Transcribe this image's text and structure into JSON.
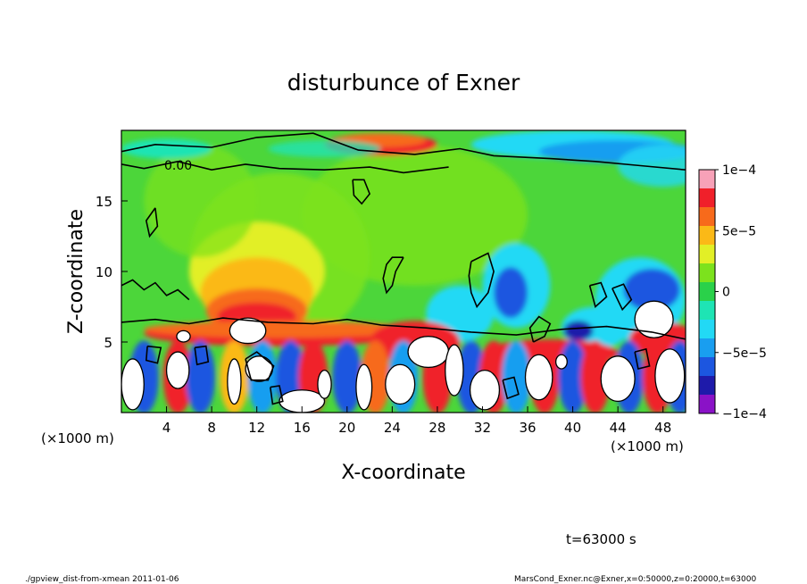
{
  "chart_data": {
    "type": "heatmap",
    "title": "disturbunce of Exner",
    "xlabel": "X-coordinate",
    "ylabel": "Z-coordinate",
    "x_unit_left": "(×1000 m)",
    "x_unit_right": "(×1000 m)",
    "xlim": [
      0,
      50
    ],
    "ylim": [
      0,
      20
    ],
    "x_ticks": [
      "4",
      "8",
      "12",
      "16",
      "20",
      "24",
      "28",
      "32",
      "36",
      "40",
      "44",
      "48"
    ],
    "y_ticks": [
      "5",
      "10",
      "15"
    ],
    "x_tick_values": [
      4,
      8,
      12,
      16,
      20,
      24,
      28,
      32,
      36,
      40,
      44,
      48
    ],
    "y_tick_values": [
      5,
      10,
      15
    ],
    "colorbar": {
      "min": -0.0001,
      "max": 0.0001,
      "labels": [
        "1e−4",
        "5e−5",
        "0",
        "−5e−5",
        "−1e−4"
      ],
      "label_values": [
        0.0001,
        5e-05,
        0,
        -5e-05,
        -0.0001
      ],
      "colors": [
        "#f7a1b8",
        "#f0202a",
        "#f76a1b",
        "#fbb917",
        "#e2ef26",
        "#7ce21d",
        "#2ad14a",
        "#1ee4b4",
        "#22d9f5",
        "#199ef0",
        "#1c56e0",
        "#1e1aaa",
        "#8a12c7"
      ]
    },
    "contour_label": "0.00",
    "grid": false
  },
  "footer": {
    "time_label": "t=63000 s",
    "left_note": "./gpview_dist-from-xmean  2011-01-06",
    "right_note": "MarsCond_Exner.nc@Exner,x=0:50000,z=0:20000,t=63000"
  }
}
